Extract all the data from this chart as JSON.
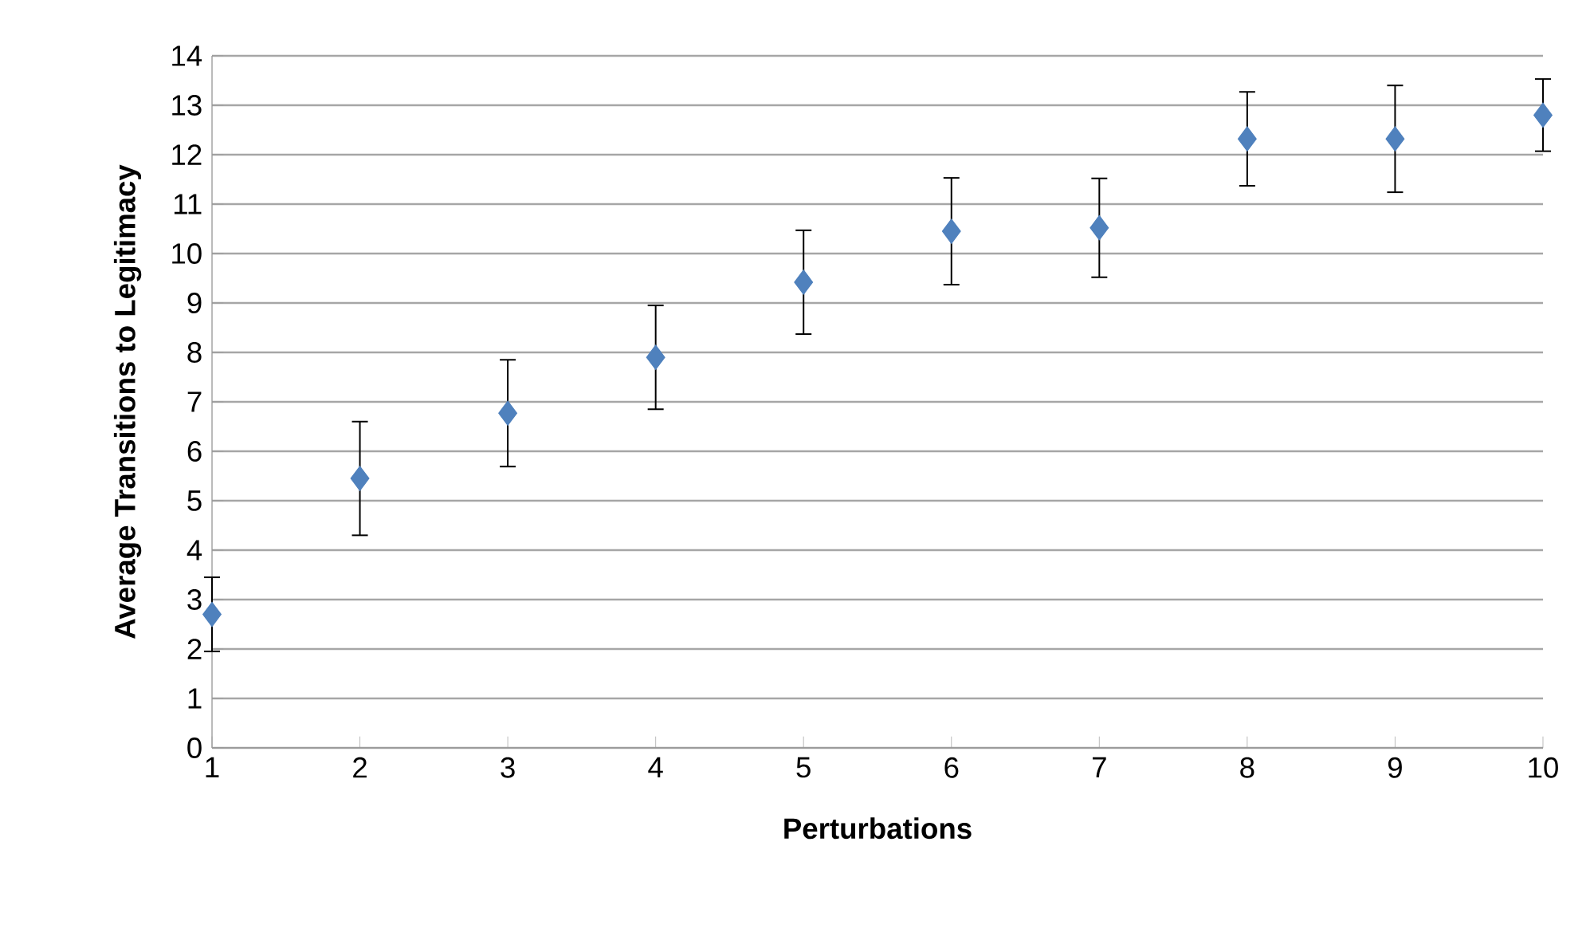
{
  "chart_data": {
    "type": "scatter",
    "xlabel": "Perturbations",
    "ylabel": "Average Transitions to Legitimacy",
    "x": [
      1,
      2,
      3,
      4,
      5,
      6,
      7,
      8,
      9,
      10
    ],
    "series": [
      {
        "color": "#4f81bd",
        "values": [
          2.7,
          5.45,
          6.77,
          7.9,
          9.42,
          10.45,
          10.52,
          12.32,
          12.32,
          12.8
        ],
        "errors": [
          0.75,
          1.15,
          1.08,
          1.05,
          1.05,
          1.08,
          1.0,
          0.95,
          1.08,
          0.73
        ]
      }
    ],
    "xlim": [
      1,
      10
    ],
    "ylim": [
      0,
      14
    ],
    "xticks": [
      1,
      2,
      3,
      4,
      5,
      6,
      7,
      8,
      9,
      10
    ],
    "yticks": [
      0,
      1,
      2,
      3,
      4,
      5,
      6,
      7,
      8,
      9,
      10,
      11,
      12,
      13,
      14
    ],
    "grid": "y",
    "marker": "diamond"
  }
}
